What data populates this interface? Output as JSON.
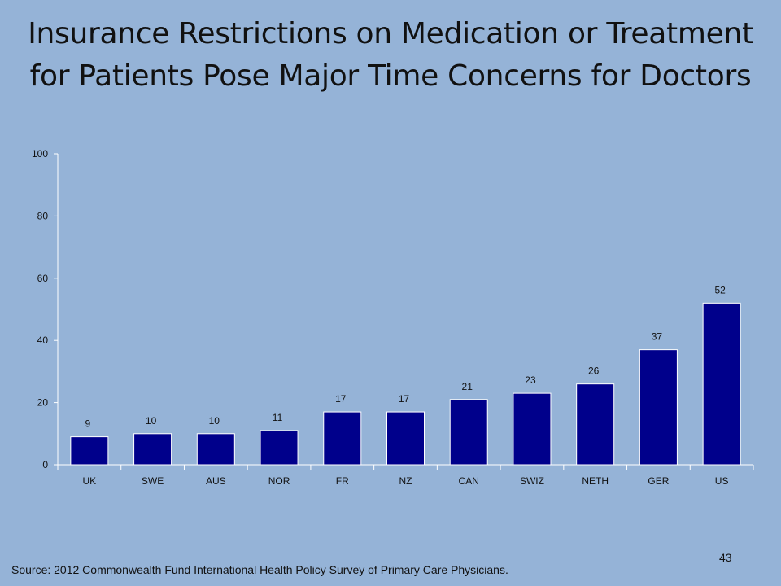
{
  "slide": {
    "title_line1": "Insurance Restrictions on Medication or Treatment",
    "title_line2": "for Patients Pose Major Time Concerns for Doctors",
    "source": "Source: 2012 Commonwealth Fund International Health Policy Survey of Primary Care Physicians.",
    "page_number": "43"
  },
  "colors": {
    "background": "#95b3d7",
    "bar_fill": "#00008b",
    "bar_stroke": "#ffffff",
    "axis": "#ffffff",
    "text": "#111111"
  },
  "chart_data": {
    "type": "bar",
    "title": "",
    "xlabel": "",
    "ylabel": "",
    "categories": [
      "UK",
      "SWE",
      "AUS",
      "NOR",
      "FR",
      "NZ",
      "CAN",
      "SWIZ",
      "NETH",
      "GER",
      "US"
    ],
    "values": [
      9,
      10,
      10,
      11,
      17,
      17,
      21,
      23,
      26,
      37,
      52
    ],
    "ylim": [
      0,
      100
    ],
    "yticks": [
      0,
      20,
      40,
      60,
      80,
      100
    ],
    "grid": false,
    "legend": "none",
    "data_labels": true
  }
}
